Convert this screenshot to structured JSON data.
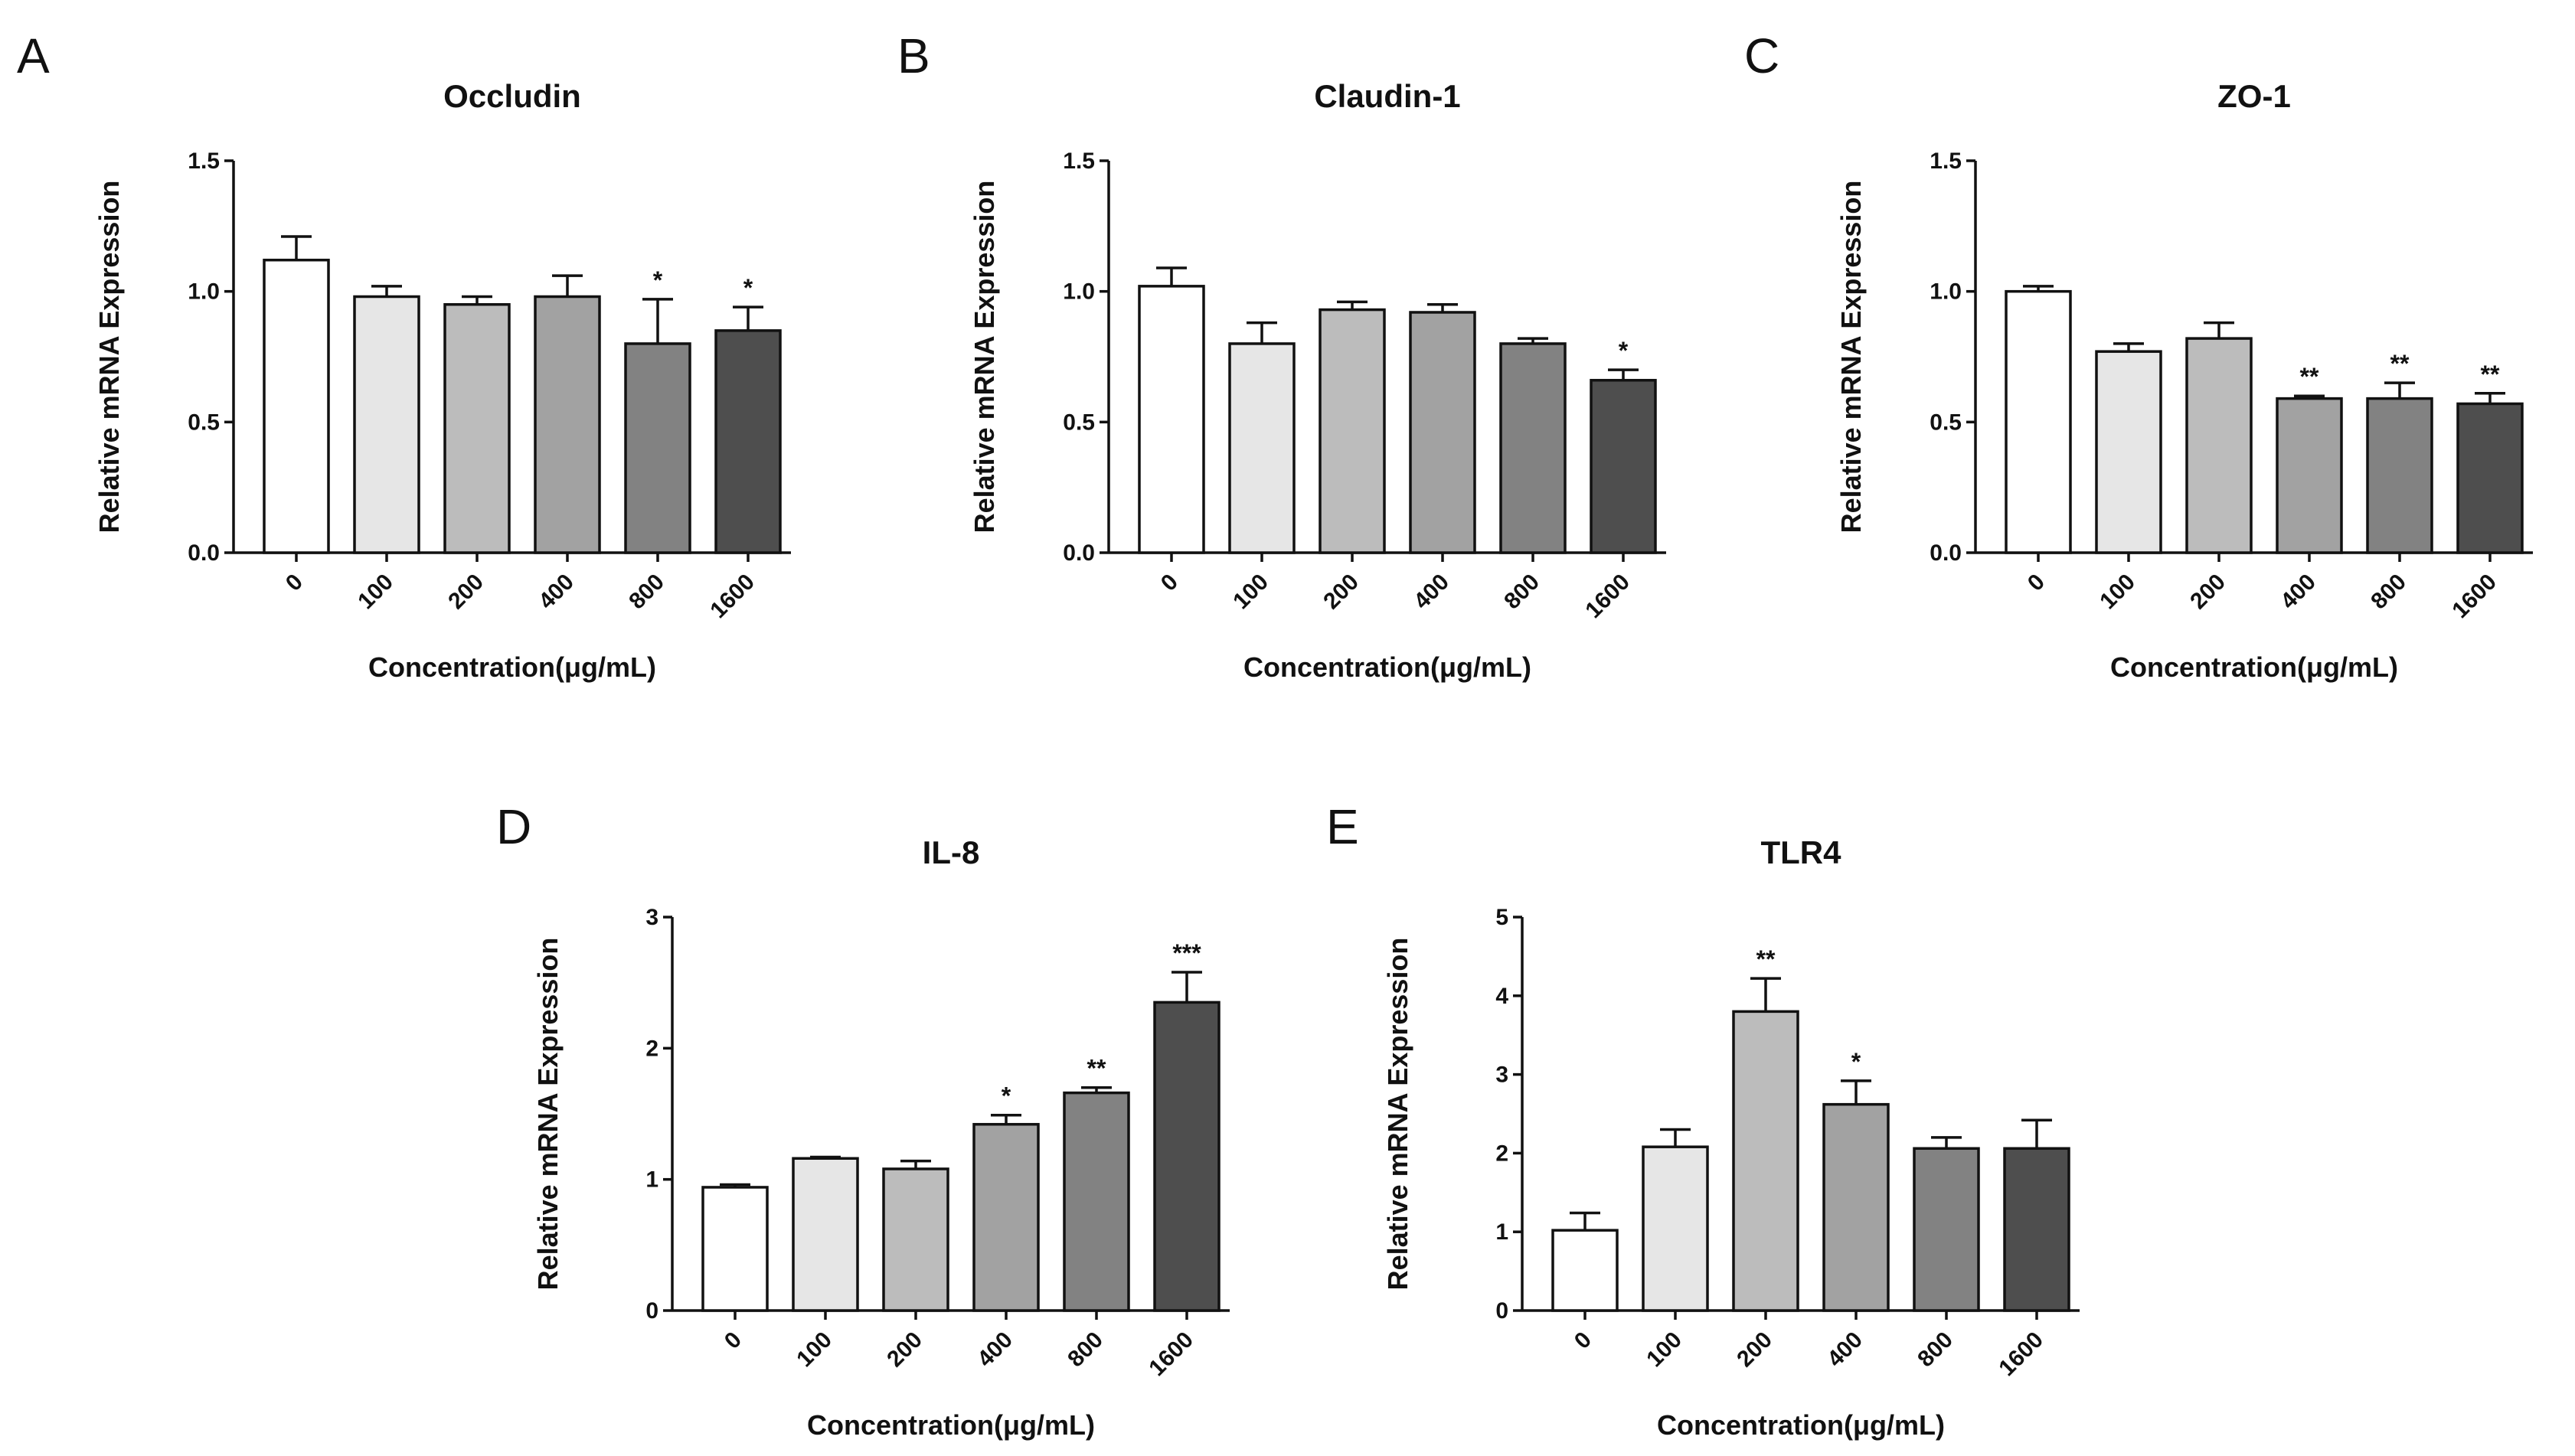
{
  "figure": {
    "ylabel": "Relative mRNA Expression",
    "xlabel": "Concentration(μg/mL)",
    "bar_colors": [
      "#ffffff",
      "#e6e6e6",
      "#bcbcbc",
      "#a2a2a2",
      "#828282",
      "#4e4e4e"
    ]
  },
  "chart_data": [
    {
      "panel": "A",
      "type": "bar",
      "title": "Occludin",
      "xlabel": "Concentration(μg/mL)",
      "ylabel": "Relative mRNA Expression",
      "categories": [
        "0",
        "100",
        "200",
        "400",
        "800",
        "1600"
      ],
      "values": [
        1.12,
        0.98,
        0.95,
        0.98,
        0.8,
        0.85
      ],
      "errors": [
        0.09,
        0.04,
        0.03,
        0.08,
        0.17,
        0.09
      ],
      "significance": [
        "",
        "",
        "",
        "",
        "*",
        "*"
      ],
      "ylim": [
        0,
        1.5
      ],
      "yticks": [
        "0.0",
        "0.5",
        "1.0",
        "1.5"
      ],
      "ytick_values": [
        0,
        0.5,
        1.0,
        1.5
      ]
    },
    {
      "panel": "B",
      "type": "bar",
      "title": "Claudin-1",
      "xlabel": "Concentration(μg/mL)",
      "ylabel": "Relative mRNA Expression",
      "categories": [
        "0",
        "100",
        "200",
        "400",
        "800",
        "1600"
      ],
      "values": [
        1.02,
        0.8,
        0.93,
        0.92,
        0.8,
        0.66
      ],
      "errors": [
        0.07,
        0.08,
        0.03,
        0.03,
        0.02,
        0.04
      ],
      "significance": [
        "",
        "",
        "",
        "",
        "",
        "*"
      ],
      "ylim": [
        0,
        1.5
      ],
      "yticks": [
        "0.0",
        "0.5",
        "1.0",
        "1.5"
      ],
      "ytick_values": [
        0,
        0.5,
        1.0,
        1.5
      ]
    },
    {
      "panel": "C",
      "type": "bar",
      "title": "ZO-1",
      "xlabel": "Concentration(μg/mL)",
      "ylabel": "Relative mRNA Expression",
      "categories": [
        "0",
        "100",
        "200",
        "400",
        "800",
        "1600"
      ],
      "values": [
        1.0,
        0.77,
        0.82,
        0.59,
        0.59,
        0.57
      ],
      "errors": [
        0.02,
        0.03,
        0.06,
        0.01,
        0.06,
        0.04
      ],
      "significance": [
        "",
        "",
        "",
        "**",
        "**",
        "**"
      ],
      "ylim": [
        0,
        1.5
      ],
      "yticks": [
        "0.0",
        "0.5",
        "1.0",
        "1.5"
      ],
      "ytick_values": [
        0,
        0.5,
        1.0,
        1.5
      ]
    },
    {
      "panel": "D",
      "type": "bar",
      "title": "IL-8",
      "xlabel": "Concentration(μg/mL)",
      "ylabel": "Relative mRNA Expression",
      "categories": [
        "0",
        "100",
        "200",
        "400",
        "800",
        "1600"
      ],
      "values": [
        0.94,
        1.16,
        1.08,
        1.42,
        1.66,
        2.35
      ],
      "errors": [
        0.02,
        0.01,
        0.06,
        0.07,
        0.04,
        0.23
      ],
      "significance": [
        "",
        "",
        "",
        "*",
        "**",
        "***"
      ],
      "ylim": [
        0,
        3
      ],
      "yticks": [
        "0",
        "1",
        "2",
        "3"
      ],
      "ytick_values": [
        0,
        1,
        2,
        3
      ]
    },
    {
      "panel": "E",
      "type": "bar",
      "title": "TLR4",
      "xlabel": "Concentration(μg/mL)",
      "ylabel": "Relative mRNA Expression",
      "categories": [
        "0",
        "100",
        "200",
        "400",
        "800",
        "1600"
      ],
      "values": [
        1.02,
        2.08,
        3.8,
        2.62,
        2.06,
        2.06
      ],
      "errors": [
        0.22,
        0.22,
        0.42,
        0.3,
        0.14,
        0.36
      ],
      "significance": [
        "",
        "",
        "**",
        "*",
        "",
        ""
      ],
      "ylim": [
        0,
        5
      ],
      "yticks": [
        "0",
        "1",
        "2",
        "3",
        "4",
        "5"
      ],
      "ytick_values": [
        0,
        1,
        2,
        3,
        4,
        5
      ]
    }
  ]
}
